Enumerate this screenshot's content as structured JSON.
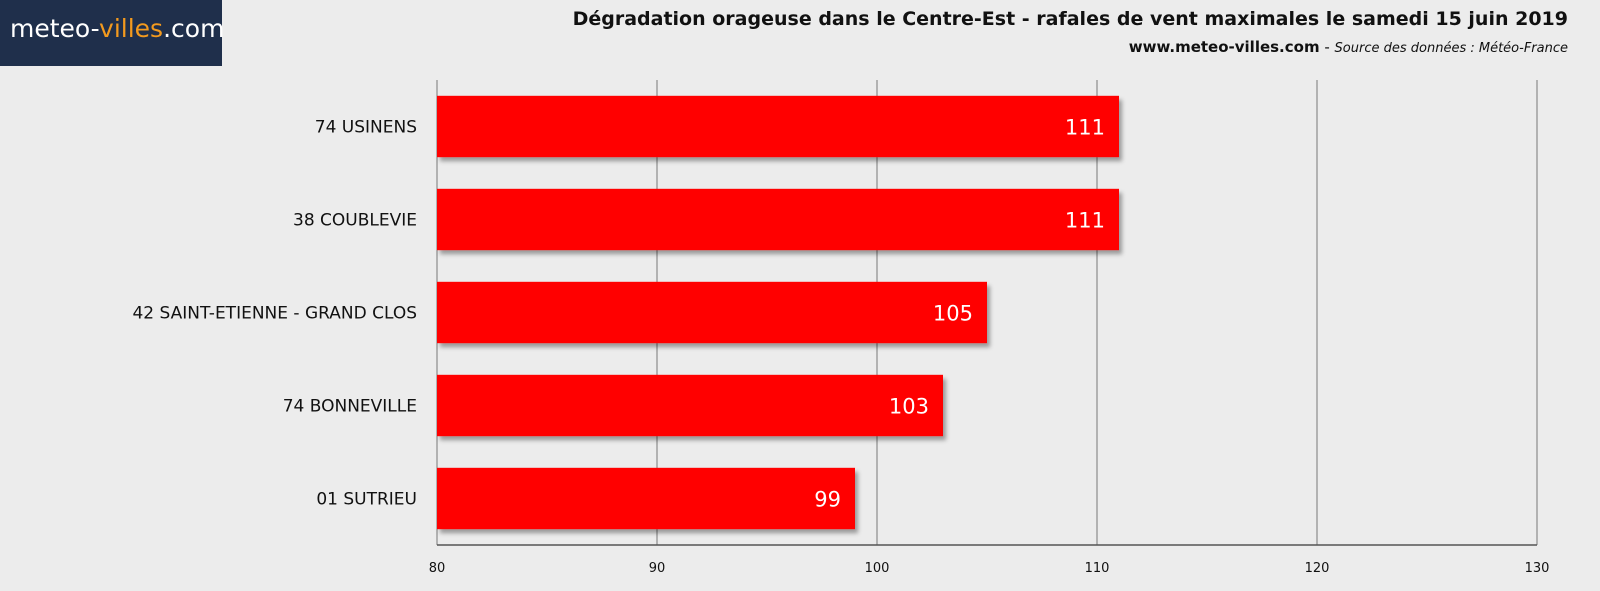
{
  "brand": {
    "logo_prefix": "meteo-",
    "logo_accent": "villes",
    "logo_suffix": ".com",
    "accent_color": "#f39a1e",
    "bg_color": "#1f2f4b"
  },
  "header": {
    "title": "Dégradation orageuse dans le Centre-Est - rafales de vent maximales le samedi 15 juin 2019",
    "site": "www.meteo-villes.com",
    "separator": " - ",
    "source": "Source des données : Météo-France"
  },
  "chart_data": {
    "type": "bar",
    "orientation": "horizontal",
    "categories": [
      "74 USINENS",
      "38 COUBLEVIE",
      "42 SAINT-ETIENNE - GRAND CLOS",
      "74 BONNEVILLE",
      "01 SUTRIEU"
    ],
    "values": [
      111,
      111,
      105,
      103,
      99
    ],
    "data_labels": [
      "111",
      "111",
      "105",
      "103",
      "99"
    ],
    "xlim": [
      80,
      130
    ],
    "xticks": [
      "80",
      "90",
      "100",
      "110",
      "120",
      "130"
    ],
    "grid": true,
    "bar_color": "#ff0000"
  }
}
